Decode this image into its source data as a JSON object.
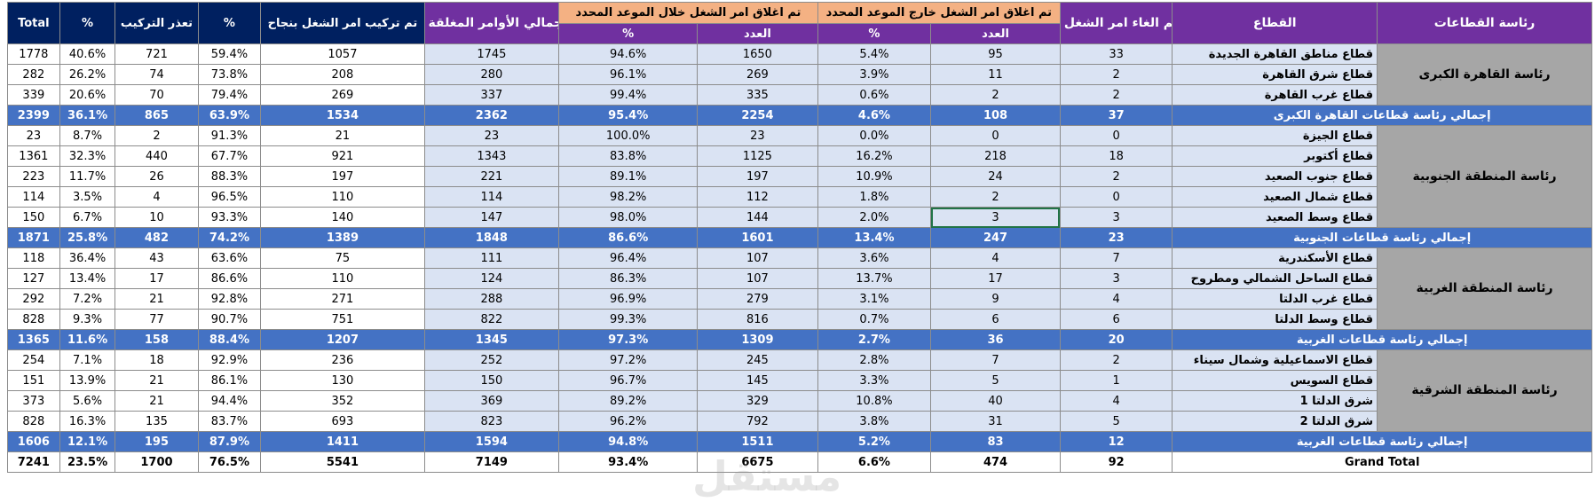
{
  "header": {
    "region": "رئاسة القطاعات",
    "sector": "القطاع",
    "cancelled": "تم الغاء امر الشغل",
    "outside": "تم اغلاق امر الشغل خارج الموعد المحدد",
    "within": "تم اغلاق امر الشغل خلال الموعد المحدد",
    "total_closed": "اجمالي الأوامر المغلقة",
    "installed": "تم تركيب امر الشغل بنجاح",
    "pct": "%",
    "not_installed": "تعذر التركيب",
    "pct2": "%",
    "total": "Total",
    "count": "العدد",
    "pct_sub": "%",
    "count2": "العدد",
    "pct_sub2": "%"
  },
  "regions": [
    {
      "name": "رئاسة القاهرة الكبرى",
      "rows": [
        {
          "sector": "قطاع مناطق القاهرة الجديدة",
          "cancelled": "33",
          "out_count": "95",
          "out_pct": "5.4%",
          "in_count": "1650",
          "in_pct": "94.6%",
          "closed": "1745",
          "installed": "1057",
          "inst_pct": "59.4%",
          "failed": "721",
          "fail_pct": "40.6%",
          "total": "1778"
        },
        {
          "sector": "قطاع شرق القاهرة",
          "cancelled": "2",
          "out_count": "11",
          "out_pct": "3.9%",
          "in_count": "269",
          "in_pct": "96.1%",
          "closed": "280",
          "installed": "208",
          "inst_pct": "73.8%",
          "failed": "74",
          "fail_pct": "26.2%",
          "total": "282"
        },
        {
          "sector": "قطاع غرب القاهرة",
          "cancelled": "2",
          "out_count": "2",
          "out_pct": "0.6%",
          "in_count": "335",
          "in_pct": "99.4%",
          "closed": "337",
          "installed": "269",
          "inst_pct": "79.4%",
          "failed": "70",
          "fail_pct": "20.6%",
          "total": "339"
        }
      ],
      "subtotal": {
        "label": "إجمالي رئاسة قطاعات القاهرة الكبرى",
        "cancelled": "37",
        "out_count": "108",
        "out_pct": "4.6%",
        "in_count": "2254",
        "in_pct": "95.4%",
        "closed": "2362",
        "installed": "1534",
        "inst_pct": "63.9%",
        "failed": "865",
        "fail_pct": "36.1%",
        "total": "2399"
      }
    },
    {
      "name": "رئاسة المنطقة الجنوبية",
      "rows": [
        {
          "sector": "قطاع الجيزة",
          "cancelled": "0",
          "out_count": "0",
          "out_pct": "0.0%",
          "in_count": "23",
          "in_pct": "100.0%",
          "closed": "23",
          "installed": "21",
          "inst_pct": "91.3%",
          "failed": "2",
          "fail_pct": "8.7%",
          "total": "23"
        },
        {
          "sector": "قطاع أكتوبر",
          "cancelled": "18",
          "out_count": "218",
          "out_pct": "16.2%",
          "in_count": "1125",
          "in_pct": "83.8%",
          "closed": "1343",
          "installed": "921",
          "inst_pct": "67.7%",
          "failed": "440",
          "fail_pct": "32.3%",
          "total": "1361"
        },
        {
          "sector": "قطاع جنوب الصعيد",
          "cancelled": "2",
          "out_count": "24",
          "out_pct": "10.9%",
          "in_count": "197",
          "in_pct": "89.1%",
          "closed": "221",
          "installed": "197",
          "inst_pct": "88.3%",
          "failed": "26",
          "fail_pct": "11.7%",
          "total": "223"
        },
        {
          "sector": "قطاع شمال الصعيد",
          "cancelled": "0",
          "out_count": "2",
          "out_pct": "1.8%",
          "in_count": "112",
          "in_pct": "98.2%",
          "closed": "114",
          "installed": "110",
          "inst_pct": "96.5%",
          "failed": "4",
          "fail_pct": "3.5%",
          "total": "114"
        },
        {
          "sector": "قطاع وسط الصعيد",
          "cancelled": "3",
          "out_count": "3",
          "out_pct": "2.0%",
          "in_count": "144",
          "in_pct": "98.0%",
          "closed": "147",
          "installed": "140",
          "inst_pct": "93.3%",
          "failed": "10",
          "fail_pct": "6.7%",
          "total": "150"
        }
      ],
      "subtotal": {
        "label": "إجمالي رئاسة قطاعات الجنوبية",
        "cancelled": "23",
        "out_count": "247",
        "out_pct": "13.4%",
        "in_count": "1601",
        "in_pct": "86.6%",
        "closed": "1848",
        "installed": "1389",
        "inst_pct": "74.2%",
        "failed": "482",
        "fail_pct": "25.8%",
        "total": "1871"
      }
    },
    {
      "name": "رئاسة المنطقة الغربية",
      "rows": [
        {
          "sector": "قطاع الأسكندرية",
          "cancelled": "7",
          "out_count": "4",
          "out_pct": "3.6%",
          "in_count": "107",
          "in_pct": "96.4%",
          "closed": "111",
          "installed": "75",
          "inst_pct": "63.6%",
          "failed": "43",
          "fail_pct": "36.4%",
          "total": "118"
        },
        {
          "sector": "قطاع الساحل الشمالي ومطروح",
          "cancelled": "3",
          "out_count": "17",
          "out_pct": "13.7%",
          "in_count": "107",
          "in_pct": "86.3%",
          "closed": "124",
          "installed": "110",
          "inst_pct": "86.6%",
          "failed": "17",
          "fail_pct": "13.4%",
          "total": "127"
        },
        {
          "sector": "قطاع غرب الدلتا",
          "cancelled": "4",
          "out_count": "9",
          "out_pct": "3.1%",
          "in_count": "279",
          "in_pct": "96.9%",
          "closed": "288",
          "installed": "271",
          "inst_pct": "92.8%",
          "failed": "21",
          "fail_pct": "7.2%",
          "total": "292"
        },
        {
          "sector": "قطاع وسط الدلتا",
          "cancelled": "6",
          "out_count": "6",
          "out_pct": "0.7%",
          "in_count": "816",
          "in_pct": "99.3%",
          "closed": "822",
          "installed": "751",
          "inst_pct": "90.7%",
          "failed": "77",
          "fail_pct": "9.3%",
          "total": "828"
        }
      ],
      "subtotal": {
        "label": "إجمالي رئاسة قطاعات الغربية",
        "cancelled": "20",
        "out_count": "36",
        "out_pct": "2.7%",
        "in_count": "1309",
        "in_pct": "97.3%",
        "closed": "1345",
        "installed": "1207",
        "inst_pct": "88.4%",
        "failed": "158",
        "fail_pct": "11.6%",
        "total": "1365"
      }
    },
    {
      "name": "رئاسة المنطقة الشرقية",
      "rows": [
        {
          "sector": "قطاع الاسماعيلية وشمال سيناء",
          "cancelled": "2",
          "out_count": "7",
          "out_pct": "2.8%",
          "in_count": "245",
          "in_pct": "97.2%",
          "closed": "252",
          "installed": "236",
          "inst_pct": "92.9%",
          "failed": "18",
          "fail_pct": "7.1%",
          "total": "254"
        },
        {
          "sector": "قطاع السويس",
          "cancelled": "1",
          "out_count": "5",
          "out_pct": "3.3%",
          "in_count": "145",
          "in_pct": "96.7%",
          "closed": "150",
          "installed": "130",
          "inst_pct": "86.1%",
          "failed": "21",
          "fail_pct": "13.9%",
          "total": "151"
        },
        {
          "sector": "شرق الدلتا 1",
          "cancelled": "4",
          "out_count": "40",
          "out_pct": "10.8%",
          "in_count": "329",
          "in_pct": "89.2%",
          "closed": "369",
          "installed": "352",
          "inst_pct": "94.4%",
          "failed": "21",
          "fail_pct": "5.6%",
          "total": "373"
        },
        {
          "sector": "شرق الدلتا 2",
          "cancelled": "5",
          "out_count": "31",
          "out_pct": "3.8%",
          "in_count": "792",
          "in_pct": "96.2%",
          "closed": "823",
          "installed": "693",
          "inst_pct": "83.7%",
          "failed": "135",
          "fail_pct": "16.3%",
          "total": "828"
        }
      ],
      "subtotal": {
        "label": "إجمالي رئاسة قطاعات الغربية",
        "cancelled": "12",
        "out_count": "83",
        "out_pct": "5.2%",
        "in_count": "1511",
        "in_pct": "94.8%",
        "closed": "1594",
        "installed": "1411",
        "inst_pct": "87.9%",
        "failed": "195",
        "fail_pct": "12.1%",
        "total": "1606"
      }
    }
  ],
  "grand": {
    "label": "Grand Total",
    "cancelled": "92",
    "out_count": "474",
    "out_pct": "6.6%",
    "in_count": "6675",
    "in_pct": "93.4%",
    "closed": "7149",
    "installed": "5541",
    "inst_pct": "76.5%",
    "failed": "1700",
    "fail_pct": "23.5%",
    "total": "7241"
  },
  "watermark": "مستقل",
  "colors": {
    "header_purple": "#7030a0",
    "header_orange": "#f4b183",
    "header_navy": "#002060",
    "subtotal_blue": "#4472c4",
    "row_light": "#dae3f3",
    "region_gray": "#a6a6a6"
  }
}
